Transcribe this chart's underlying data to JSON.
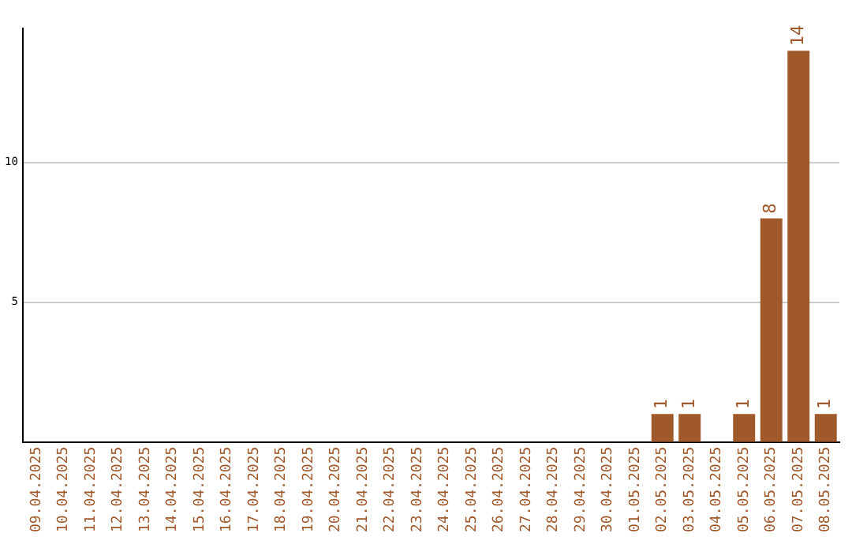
{
  "chart_data": {
    "type": "bar",
    "categories": [
      "09.04.2025",
      "10.04.2025",
      "11.04.2025",
      "12.04.2025",
      "13.04.2025",
      "14.04.2025",
      "15.04.2025",
      "16.04.2025",
      "17.04.2025",
      "18.04.2025",
      "19.04.2025",
      "20.04.2025",
      "21.04.2025",
      "22.04.2025",
      "23.04.2025",
      "24.04.2025",
      "25.04.2025",
      "26.04.2025",
      "27.04.2025",
      "28.04.2025",
      "29.04.2025",
      "30.04.2025",
      "01.05.2025",
      "02.05.2025",
      "03.05.2025",
      "04.05.2025",
      "05.05.2025",
      "06.05.2025",
      "07.05.2025",
      "08.05.2025"
    ],
    "values": [
      0,
      0,
      0,
      0,
      0,
      0,
      0,
      0,
      0,
      0,
      0,
      0,
      0,
      0,
      0,
      0,
      0,
      0,
      0,
      0,
      0,
      0,
      0,
      1,
      1,
      0,
      1,
      8,
      14,
      1
    ],
    "value_labels": [
      null,
      null,
      null,
      null,
      null,
      null,
      null,
      null,
      null,
      null,
      null,
      null,
      null,
      null,
      null,
      null,
      null,
      null,
      null,
      null,
      null,
      null,
      null,
      "1",
      "1",
      null,
      "1",
      "8",
      "14",
      "1"
    ],
    "color": "#a0592b",
    "ylim": [
      0,
      14.8
    ],
    "yticks": [
      5,
      10
    ],
    "grid": "y",
    "legend": false
  }
}
